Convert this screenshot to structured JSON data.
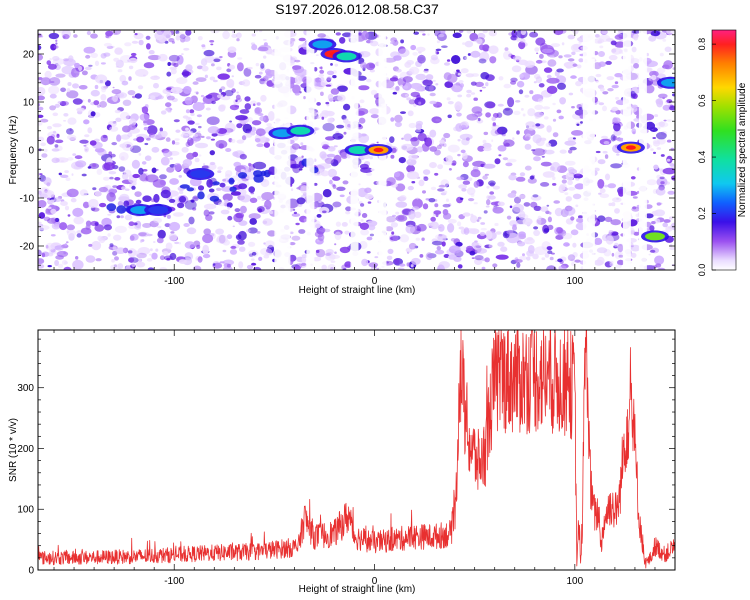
{
  "title": "S197.2026.012.08.58.C37",
  "chart_data": [
    {
      "type": "heatmap",
      "title": "S197.2026.012.08.58.C37",
      "xlabel": "Height of straight line (km)",
      "ylabel": "Frequency (Hz)",
      "xlim": [
        -168,
        150
      ],
      "ylim": [
        -25,
        25
      ],
      "xticks": [
        -100,
        0,
        100
      ],
      "xtick_labels": [
        "-100",
        "0",
        "100"
      ],
      "yticks": [
        -20,
        -10,
        0,
        10,
        20
      ],
      "ytick_labels": [
        "-20",
        "-10",
        "0",
        "10",
        "20"
      ],
      "colorbar": {
        "label": "Normalized spectral amplitude",
        "range": [
          0,
          0.85
        ],
        "ticks": [
          0.0,
          0.2,
          0.4,
          0.6,
          0.8
        ],
        "tick_labels": [
          "0.0",
          "0.2",
          "0.4",
          "0.6",
          "0.8"
        ]
      },
      "blank_columns_km": [
        [
          -50,
          -42
        ],
        [
          -34,
          -30
        ],
        [
          -12,
          -8
        ],
        [
          2,
          6
        ],
        [
          104,
          110
        ],
        [
          124,
          128
        ],
        [
          132,
          136
        ]
      ],
      "peaks": [
        {
          "x": -117,
          "y": -12.5,
          "amp": 0.3
        },
        {
          "x": -108,
          "y": -12.5,
          "amp": 0.25
        },
        {
          "x": -87,
          "y": -5,
          "amp": 0.22
        },
        {
          "x": -46,
          "y": 3.5,
          "amp": 0.35
        },
        {
          "x": -37,
          "y": 4,
          "amp": 0.4
        },
        {
          "x": -26,
          "y": 22,
          "amp": 0.35
        },
        {
          "x": -20,
          "y": 20,
          "amp": 0.85
        },
        {
          "x": -14,
          "y": 19.5,
          "amp": 0.4
        },
        {
          "x": -8,
          "y": 0,
          "amp": 0.4
        },
        {
          "x": 2,
          "y": 0,
          "amp": 0.75
        },
        {
          "x": 128,
          "y": 0.5,
          "amp": 0.7
        },
        {
          "x": 140,
          "y": -18,
          "amp": 0.5
        },
        {
          "x": 148,
          "y": 14,
          "amp": 0.3
        }
      ]
    },
    {
      "type": "line",
      "xlabel": "Height of straight line (km)",
      "ylabel": "SNR (10 * v/v)",
      "xlim": [
        -168,
        150
      ],
      "ylim": [
        0,
        395
      ],
      "xticks": [
        -100,
        0,
        100
      ],
      "xtick_labels": [
        "-100",
        "0",
        "100"
      ],
      "yticks": [
        0,
        100,
        200,
        300
      ],
      "ytick_labels": [
        "0",
        "100",
        "200",
        "300"
      ],
      "series": [
        {
          "name": "SNR",
          "color": "#e83030",
          "x": [
            -168,
            -150,
            -120,
            -100,
            -80,
            -60,
            -38,
            -35,
            -30,
            -20,
            -13,
            -10,
            0,
            10,
            20,
            30,
            38,
            40,
            41,
            42,
            43,
            44,
            45,
            48,
            52,
            55,
            58,
            60,
            65,
            70,
            80,
            90,
            98,
            100,
            101,
            102,
            103,
            104,
            105,
            106,
            107,
            108,
            110,
            112,
            113,
            115,
            118,
            120,
            122,
            125,
            128,
            129,
            130,
            132,
            134,
            135,
            138,
            140,
            145,
            150
          ],
          "y": [
            20,
            20,
            22,
            25,
            28,
            30,
            38,
            85,
            55,
            60,
            90,
            55,
            45,
            50,
            55,
            55,
            60,
            90,
            140,
            290,
            330,
            300,
            260,
            200,
            175,
            190,
            270,
            310,
            320,
            315,
            320,
            315,
            305,
            300,
            10,
            80,
            10,
            100,
            350,
            390,
            220,
            130,
            90,
            95,
            40,
            85,
            110,
            95,
            110,
            220,
            280,
            240,
            200,
            90,
            40,
            10,
            20,
            40,
            25,
            40
          ]
        }
      ]
    }
  ]
}
